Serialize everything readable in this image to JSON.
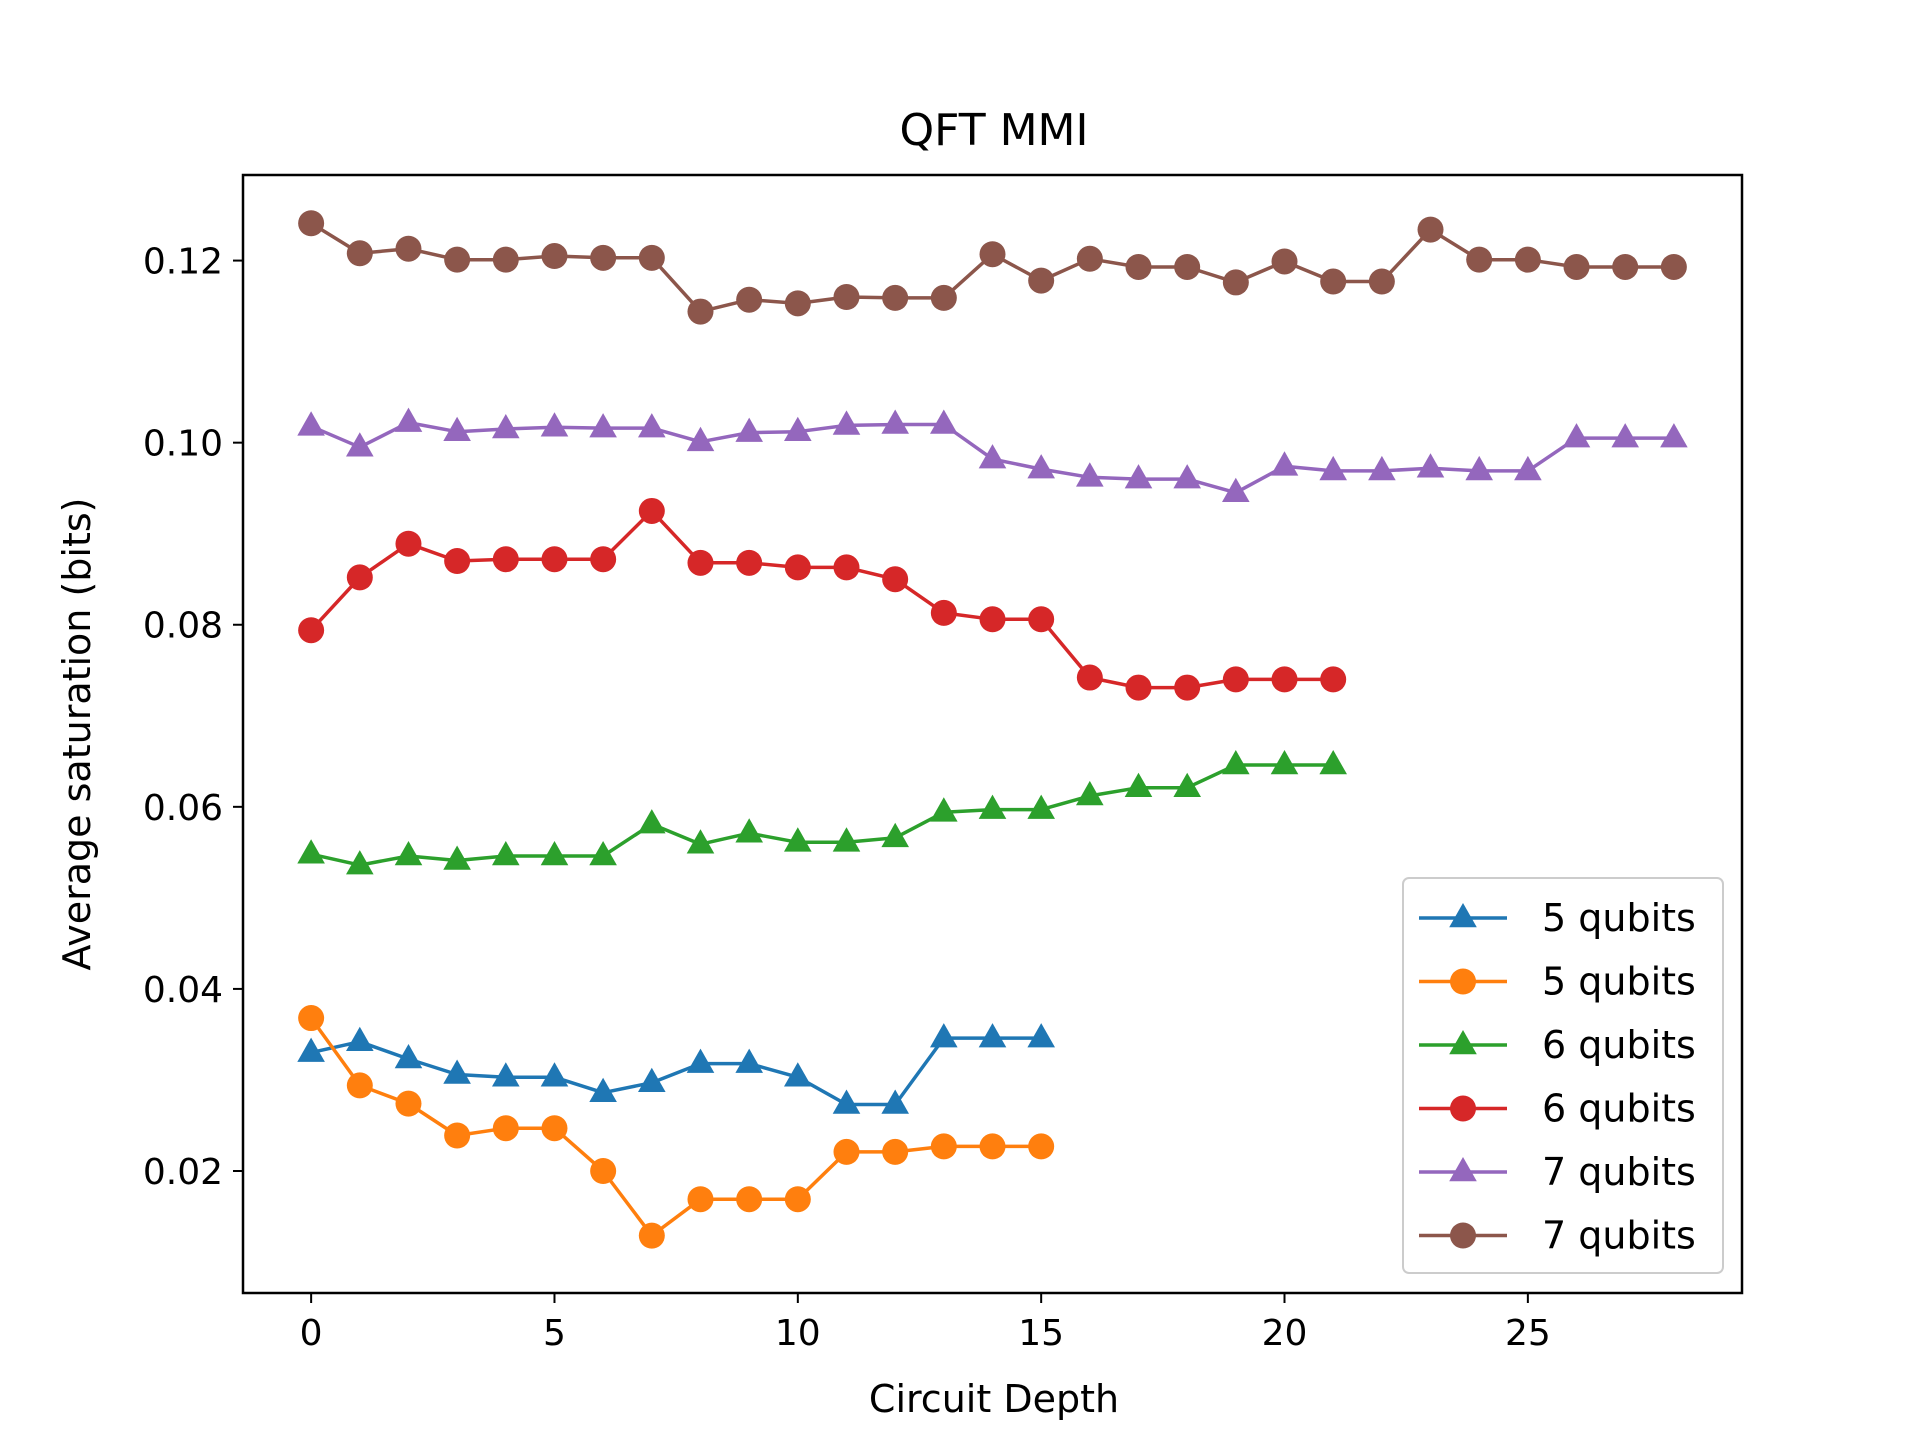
{
  "chart_data": {
    "type": "line",
    "title": "QFT MMI",
    "xlabel": "Circuit Depth",
    "ylabel": "Average saturation (bits)",
    "xlim": [
      -1.4,
      29.4
    ],
    "ylim": [
      0.0066,
      0.1294
    ],
    "xticks": [
      0,
      5,
      10,
      15,
      20,
      25
    ],
    "xtick_labels": [
      "0",
      "5",
      "10",
      "15",
      "20",
      "25"
    ],
    "yticks": [
      0.02,
      0.04,
      0.06,
      0.08,
      0.1,
      0.12
    ],
    "ytick_labels": [
      "0.02",
      "0.04",
      "0.06",
      "0.08",
      "0.10",
      "0.12"
    ],
    "grid": false,
    "legend_position": "lower-right",
    "series": [
      {
        "name": "5 qubits",
        "color": "#1f77b4",
        "marker": "triangle",
        "x": [
          0,
          1,
          2,
          3,
          4,
          5,
          6,
          7,
          8,
          9,
          10,
          11,
          12,
          13,
          14,
          15
        ],
        "values": [
          0.033,
          0.0342,
          0.0323,
          0.0306,
          0.0303,
          0.0303,
          0.0286,
          0.0297,
          0.0318,
          0.0318,
          0.0303,
          0.0273,
          0.0273,
          0.0346,
          0.0346,
          0.0346
        ]
      },
      {
        "name": "5 qubits",
        "color": "#ff7f0e",
        "marker": "circle",
        "x": [
          0,
          1,
          2,
          3,
          4,
          5,
          6,
          7,
          8,
          9,
          10,
          11,
          12,
          13,
          14,
          15
        ],
        "values": [
          0.0368,
          0.0294,
          0.0274,
          0.0239,
          0.0247,
          0.0247,
          0.02,
          0.0129,
          0.0169,
          0.0169,
          0.0169,
          0.0221,
          0.0221,
          0.0227,
          0.0227,
          0.0227
        ]
      },
      {
        "name": "6 qubits",
        "color": "#2ca02c",
        "marker": "triangle",
        "x": [
          0,
          1,
          2,
          3,
          4,
          5,
          6,
          7,
          8,
          9,
          10,
          11,
          12,
          13,
          14,
          15,
          16,
          17,
          18,
          19,
          20,
          21
        ],
        "values": [
          0.0548,
          0.0536,
          0.0546,
          0.0541,
          0.0546,
          0.0546,
          0.0546,
          0.0581,
          0.0559,
          0.0571,
          0.0561,
          0.0561,
          0.0566,
          0.0594,
          0.0597,
          0.0597,
          0.0612,
          0.0621,
          0.0621,
          0.0646,
          0.0646,
          0.0646
        ]
      },
      {
        "name": "6 qubits",
        "color": "#d62728",
        "marker": "circle",
        "x": [
          0,
          1,
          2,
          3,
          4,
          5,
          6,
          7,
          8,
          9,
          10,
          11,
          12,
          13,
          14,
          15,
          16,
          17,
          18,
          19,
          20,
          21
        ],
        "values": [
          0.0794,
          0.0852,
          0.0889,
          0.087,
          0.0872,
          0.0872,
          0.0872,
          0.0925,
          0.0868,
          0.0868,
          0.0863,
          0.0863,
          0.085,
          0.0813,
          0.0806,
          0.0806,
          0.0742,
          0.0731,
          0.0731,
          0.074,
          0.074,
          0.074
        ]
      },
      {
        "name": "7 qubits",
        "color": "#9467bd",
        "marker": "triangle",
        "x": [
          0,
          1,
          2,
          3,
          4,
          5,
          6,
          7,
          8,
          9,
          10,
          11,
          12,
          13,
          14,
          15,
          16,
          17,
          18,
          19,
          20,
          21,
          22,
          23,
          24,
          25,
          26,
          27,
          28
        ],
        "values": [
          0.1018,
          0.0995,
          0.1022,
          0.1012,
          0.1015,
          0.1017,
          0.1016,
          0.1016,
          0.1001,
          0.1011,
          0.1012,
          0.1019,
          0.102,
          0.102,
          0.0982,
          0.0971,
          0.0962,
          0.096,
          0.096,
          0.0945,
          0.0974,
          0.0969,
          0.0969,
          0.0972,
          0.0969,
          0.0969,
          0.1005,
          0.1005,
          0.1005
        ]
      },
      {
        "name": "7 qubits",
        "color": "#8c564b",
        "marker": "circle",
        "x": [
          0,
          1,
          2,
          3,
          4,
          5,
          6,
          7,
          8,
          9,
          10,
          11,
          12,
          13,
          14,
          15,
          16,
          17,
          18,
          19,
          20,
          21,
          22,
          23,
          24,
          25,
          26,
          27,
          28
        ],
        "values": [
          0.1241,
          0.1208,
          0.1213,
          0.1201,
          0.1201,
          0.1205,
          0.1203,
          0.1203,
          0.1144,
          0.1157,
          0.1153,
          0.116,
          0.1159,
          0.1159,
          0.1207,
          0.1178,
          0.1202,
          0.1193,
          0.1193,
          0.1176,
          0.1199,
          0.1177,
          0.1177,
          0.1234,
          0.1201,
          0.1201,
          0.1193,
          0.1193,
          0.1193
        ]
      }
    ]
  }
}
